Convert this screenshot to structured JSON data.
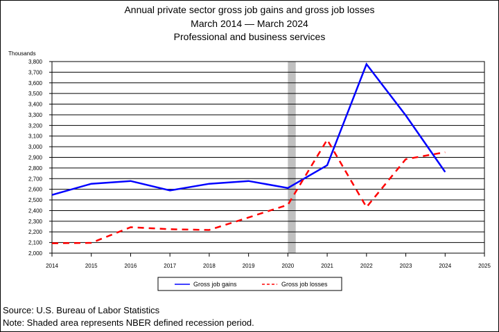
{
  "title_lines": [
    "Annual private sector gross job gains and gross job losses",
    "March 2014 — March 2024",
    "Professional and business services"
  ],
  "footer": {
    "source": "Source: U.S. Bureau of Labor Statistics",
    "note": "Note: Shaded area represents NBER defined recession period."
  },
  "colors": {
    "gains": "#0000ff",
    "losses": "#ff0000",
    "recession": "#c0c0c0"
  },
  "chart_data": {
    "type": "line",
    "ylabel": "Thousands",
    "xlim": [
      2014,
      2025
    ],
    "ylim": [
      2000,
      3800
    ],
    "y_ticks": [
      2000,
      2100,
      2200,
      2300,
      2400,
      2500,
      2600,
      2700,
      2800,
      2900,
      3000,
      3100,
      3200,
      3300,
      3400,
      3500,
      3600,
      3700,
      3800
    ],
    "y_tick_labels": [
      "2,000",
      "2,100",
      "2,200",
      "2,300",
      "2,400",
      "2,500",
      "2,600",
      "2,700",
      "2,800",
      "2,900",
      "3,000",
      "3,100",
      "3,200",
      "3,300",
      "3,400",
      "3,500",
      "3,600",
      "3,700",
      "3,800"
    ],
    "x_ticks": [
      2014,
      2015,
      2016,
      2017,
      2018,
      2019,
      2020,
      2021,
      2022,
      2023,
      2024,
      2025
    ],
    "x_tick_labels": [
      "2014",
      "2015",
      "2016",
      "2017",
      "2018",
      "2019",
      "2020",
      "2021",
      "2022",
      "2023",
      "2024",
      "2025"
    ],
    "recession": [
      2020.0,
      2020.2
    ],
    "grid": true,
    "legend_position": "bottom",
    "series": [
      {
        "name": "Gross job gains",
        "style": "solid",
        "x": [
          2014,
          2015,
          2016,
          2017,
          2018,
          2019,
          2020,
          2021,
          2022,
          2023,
          2024
        ],
        "values": [
          2547,
          2652,
          2678,
          2589,
          2652,
          2678,
          2612,
          2826,
          3775,
          3294,
          2762
        ]
      },
      {
        "name": "Gross job losses",
        "style": "dashed",
        "x": [
          2014,
          2015,
          2016,
          2017,
          2018,
          2019,
          2020,
          2021,
          2022,
          2023,
          2024
        ],
        "values": [
          2093,
          2097,
          2244,
          2225,
          2218,
          2335,
          2454,
          3066,
          2432,
          2883,
          2948
        ]
      }
    ]
  }
}
